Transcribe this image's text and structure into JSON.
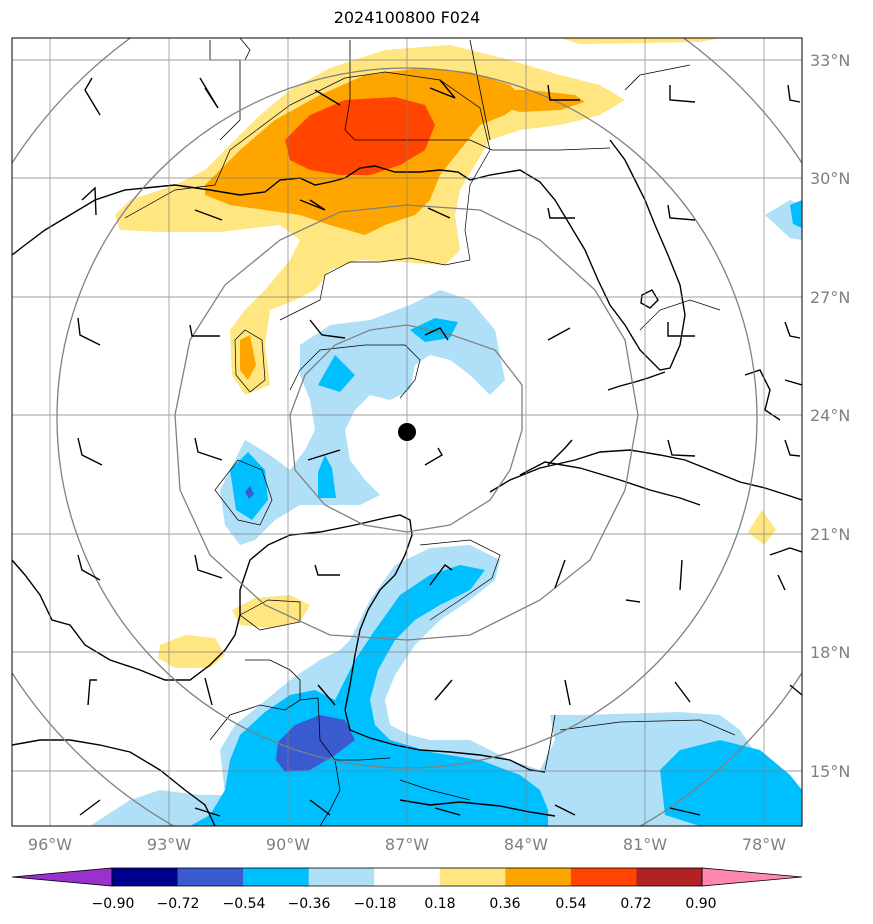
{
  "title": "2024100800 F024",
  "map": {
    "center_marker": "storm-center-dot",
    "lat_labels": [
      "33°N",
      "30°N",
      "27°N",
      "24°N",
      "21°N",
      "18°N",
      "15°N"
    ],
    "lon_labels": [
      "96°W",
      "93°W",
      "90°W",
      "87°W",
      "84°W",
      "81°W",
      "78°W"
    ],
    "range_rings": 4,
    "grid": true
  },
  "colorbar": {
    "labels": [
      "−0.90",
      "−0.72",
      "−0.54",
      "−0.36",
      "−0.18",
      "0.18",
      "0.36",
      "0.54",
      "0.72",
      "0.90"
    ],
    "colors": [
      "#9932cc",
      "#000090",
      "#3a5ad0",
      "#00bfff",
      "#b0e0f8",
      "#ffffff",
      "#ffe680",
      "#ffa500",
      "#ff4500",
      "#b22222",
      "#ff88b0"
    ],
    "extend": "both"
  },
  "colors": {
    "neg_light": "#b0e0f8",
    "neg_mid": "#00bfff",
    "neg_dark": "#3a5ad0",
    "pos_light": "#ffe680",
    "pos_mid": "#ffa500",
    "pos_dark": "#ff4500",
    "grid": "#808080"
  }
}
